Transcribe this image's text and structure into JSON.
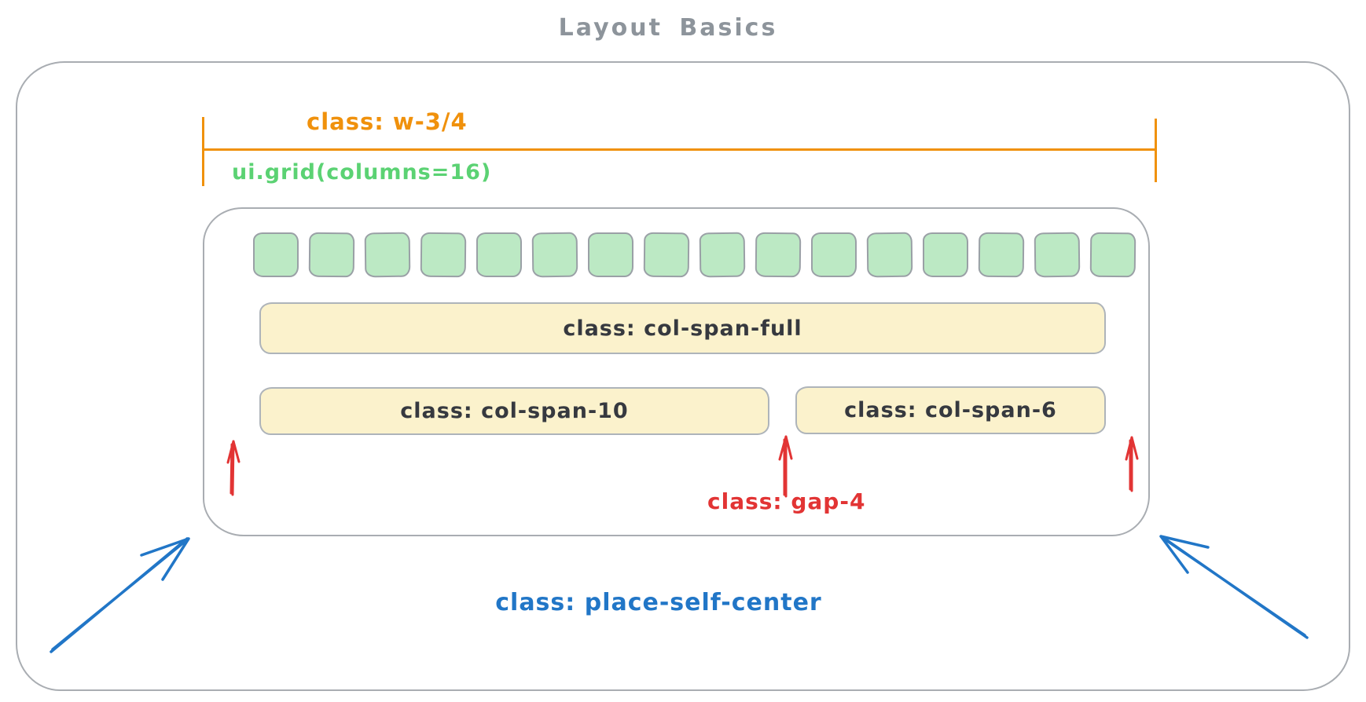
{
  "title": "Layout Basics",
  "annotations": {
    "width_label": "class: w-3/4",
    "grid_label": "ui.grid(columns=16)",
    "gap_label": "class: gap-4",
    "place_self_label": "class: place-self-center"
  },
  "grid": {
    "columns": 16
  },
  "bars": {
    "full_label": "class: col-span-full",
    "span10_label": "class: col-span-10",
    "span6_label": "class: col-span-6"
  },
  "colors": {
    "orange": "#f0910c",
    "green": "#5bd273",
    "cell_fill": "#bce9c4",
    "cell_stroke": "#9aa0a6",
    "bar_fill": "#fbf2cc",
    "bar_stroke": "#aeb4ba",
    "container_stroke": "#a9adb2",
    "ink": "#36393f",
    "red": "#e23434",
    "blue": "#2176c7",
    "title_gray": "#8d949b"
  }
}
